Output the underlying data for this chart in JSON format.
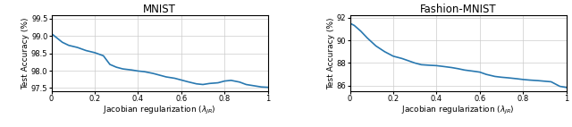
{
  "mnist": {
    "title": "MNIST",
    "xlabel": "Jacobian regularization ($\\lambda_{JR}$)",
    "ylabel": "Test Accuracy (%)",
    "ylim": [
      97.4,
      99.6
    ],
    "yticks": [
      97.5,
      98.0,
      98.5,
      99.0,
      99.5
    ],
    "xlim": [
      0.0,
      1.0
    ],
    "xticks": [
      0.0,
      0.2,
      0.4,
      0.6,
      0.8,
      1.0
    ],
    "x": [
      0.0,
      0.02,
      0.05,
      0.08,
      0.12,
      0.16,
      0.2,
      0.24,
      0.27,
      0.3,
      0.33,
      0.37,
      0.4,
      0.43,
      0.47,
      0.5,
      0.53,
      0.57,
      0.6,
      0.63,
      0.67,
      0.7,
      0.73,
      0.77,
      0.8,
      0.83,
      0.87,
      0.9,
      0.93,
      0.97,
      1.0
    ],
    "y": [
      99.07,
      98.97,
      98.82,
      98.73,
      98.67,
      98.58,
      98.52,
      98.43,
      98.18,
      98.1,
      98.05,
      98.02,
      97.99,
      97.97,
      97.92,
      97.87,
      97.82,
      97.78,
      97.73,
      97.68,
      97.62,
      97.6,
      97.63,
      97.65,
      97.7,
      97.72,
      97.67,
      97.6,
      97.57,
      97.53,
      97.52
    ]
  },
  "fashion": {
    "title": "Fashion-MNIST",
    "xlabel": "Jacobian regularization ($\\lambda_{JR}$)",
    "ylabel": "Test Accuracy (%)",
    "ylim": [
      85.5,
      92.2
    ],
    "yticks": [
      86,
      88,
      90,
      92
    ],
    "xlim": [
      0.0,
      1.0
    ],
    "xticks": [
      0.0,
      0.2,
      0.4,
      0.6,
      0.8,
      1.0
    ],
    "x": [
      0.0,
      0.02,
      0.05,
      0.08,
      0.12,
      0.16,
      0.2,
      0.24,
      0.27,
      0.3,
      0.33,
      0.37,
      0.4,
      0.43,
      0.47,
      0.5,
      0.53,
      0.57,
      0.6,
      0.63,
      0.67,
      0.7,
      0.73,
      0.77,
      0.8,
      0.83,
      0.87,
      0.9,
      0.93,
      0.97,
      1.0
    ],
    "y": [
      91.5,
      91.3,
      90.8,
      90.2,
      89.5,
      89.0,
      88.6,
      88.4,
      88.2,
      88.0,
      87.85,
      87.8,
      87.77,
      87.7,
      87.6,
      87.5,
      87.38,
      87.28,
      87.2,
      87.0,
      86.82,
      86.75,
      86.7,
      86.62,
      86.55,
      86.5,
      86.45,
      86.4,
      86.35,
      85.95,
      85.85
    ]
  },
  "line_color": "#2878b0",
  "line_width": 1.2,
  "grid_color": "#cccccc",
  "background_color": "#ffffff",
  "title_fontsize": 8.5,
  "label_fontsize": 6.5,
  "tick_fontsize": 6.0
}
